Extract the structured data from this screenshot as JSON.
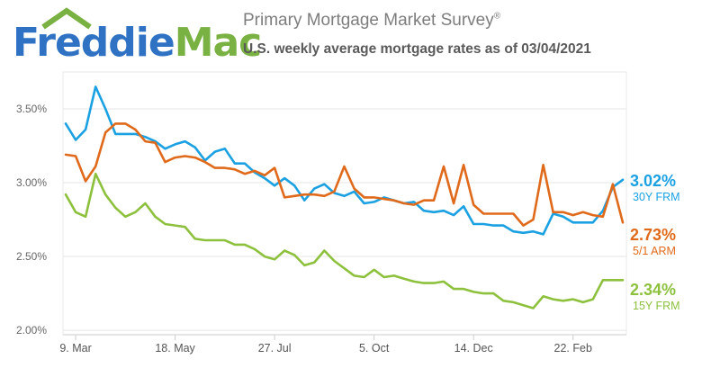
{
  "header": {
    "logo_text_1": "Freddie",
    "logo_text_2": "Mac",
    "title": "Primary Mortgage Market Survey",
    "title_mark": "®",
    "subtitle": "U.S. weekly average mortgage rates as of 03/04/2021"
  },
  "colors": {
    "frm30": "#1ba1e2",
    "arm51": "#e06a1b",
    "frm15": "#8dc13d",
    "brand_blue": "#2f72c4",
    "brand_green": "#79b142"
  },
  "chart_data": {
    "type": "line",
    "title": "U.S. weekly average mortgage rates as of 03/04/2021",
    "ylim": [
      1.97,
      3.75
    ],
    "yticks": [
      "2.00%",
      "2.50%",
      "3.00%",
      "3.50%"
    ],
    "ytick_values": [
      2.0,
      2.5,
      3.0,
      3.5
    ],
    "xticks": [
      "9. Mar",
      "18. May",
      "27. Jul",
      "5. Oct",
      "14. Dec",
      "22. Feb"
    ],
    "xtick_index": [
      1,
      11,
      21,
      31,
      41,
      51
    ],
    "grid": true,
    "series": [
      {
        "name": "30Y FRM",
        "end_label": "3.02%",
        "color": "#1ba1e2",
        "values": [
          3.4,
          3.29,
          3.36,
          3.65,
          3.5,
          3.33,
          3.33,
          3.33,
          3.31,
          3.28,
          3.23,
          3.26,
          3.28,
          3.24,
          3.15,
          3.21,
          3.23,
          3.13,
          3.13,
          3.07,
          3.03,
          2.98,
          3.03,
          2.98,
          2.88,
          2.96,
          2.99,
          2.93,
          2.91,
          2.94,
          2.86,
          2.87,
          2.9,
          2.88,
          2.86,
          2.87,
          2.81,
          2.8,
          2.81,
          2.78,
          2.84,
          2.72,
          2.72,
          2.71,
          2.71,
          2.67,
          2.66,
          2.67,
          2.65,
          2.79,
          2.77,
          2.73,
          2.73,
          2.73,
          2.81,
          2.97,
          3.02
        ]
      },
      {
        "name": "5/1 ARM",
        "end_label": "2.73%",
        "color": "#e06a1b",
        "values": [
          3.19,
          3.18,
          3.01,
          3.11,
          3.34,
          3.4,
          3.4,
          3.36,
          3.28,
          3.27,
          3.14,
          3.17,
          3.18,
          3.17,
          3.14,
          3.1,
          3.1,
          3.09,
          3.06,
          3.08,
          3.05,
          3.1,
          2.9,
          2.91,
          2.92,
          2.92,
          2.91,
          2.94,
          3.11,
          2.96,
          2.9,
          2.9,
          2.89,
          2.88,
          2.86,
          2.85,
          2.88,
          2.88,
          3.11,
          2.86,
          3.12,
          2.85,
          2.79,
          2.79,
          2.79,
          2.79,
          2.71,
          2.75,
          3.12,
          2.8,
          2.8,
          2.78,
          2.8,
          2.78,
          2.77,
          2.99,
          2.73
        ]
      },
      {
        "name": "15Y FRM",
        "end_label": "2.34%",
        "color": "#8dc13d",
        "values": [
          2.92,
          2.8,
          2.77,
          3.06,
          2.92,
          2.83,
          2.77,
          2.8,
          2.86,
          2.77,
          2.72,
          2.71,
          2.7,
          2.62,
          2.61,
          2.61,
          2.61,
          2.58,
          2.58,
          2.55,
          2.5,
          2.48,
          2.54,
          2.51,
          2.44,
          2.46,
          2.54,
          2.47,
          2.42,
          2.37,
          2.36,
          2.41,
          2.36,
          2.37,
          2.35,
          2.33,
          2.32,
          2.32,
          2.33,
          2.28,
          2.28,
          2.26,
          2.25,
          2.25,
          2.2,
          2.19,
          2.17,
          2.15,
          2.23,
          2.21,
          2.2,
          2.21,
          2.19,
          2.21,
          2.34,
          2.34,
          2.34
        ]
      }
    ]
  }
}
